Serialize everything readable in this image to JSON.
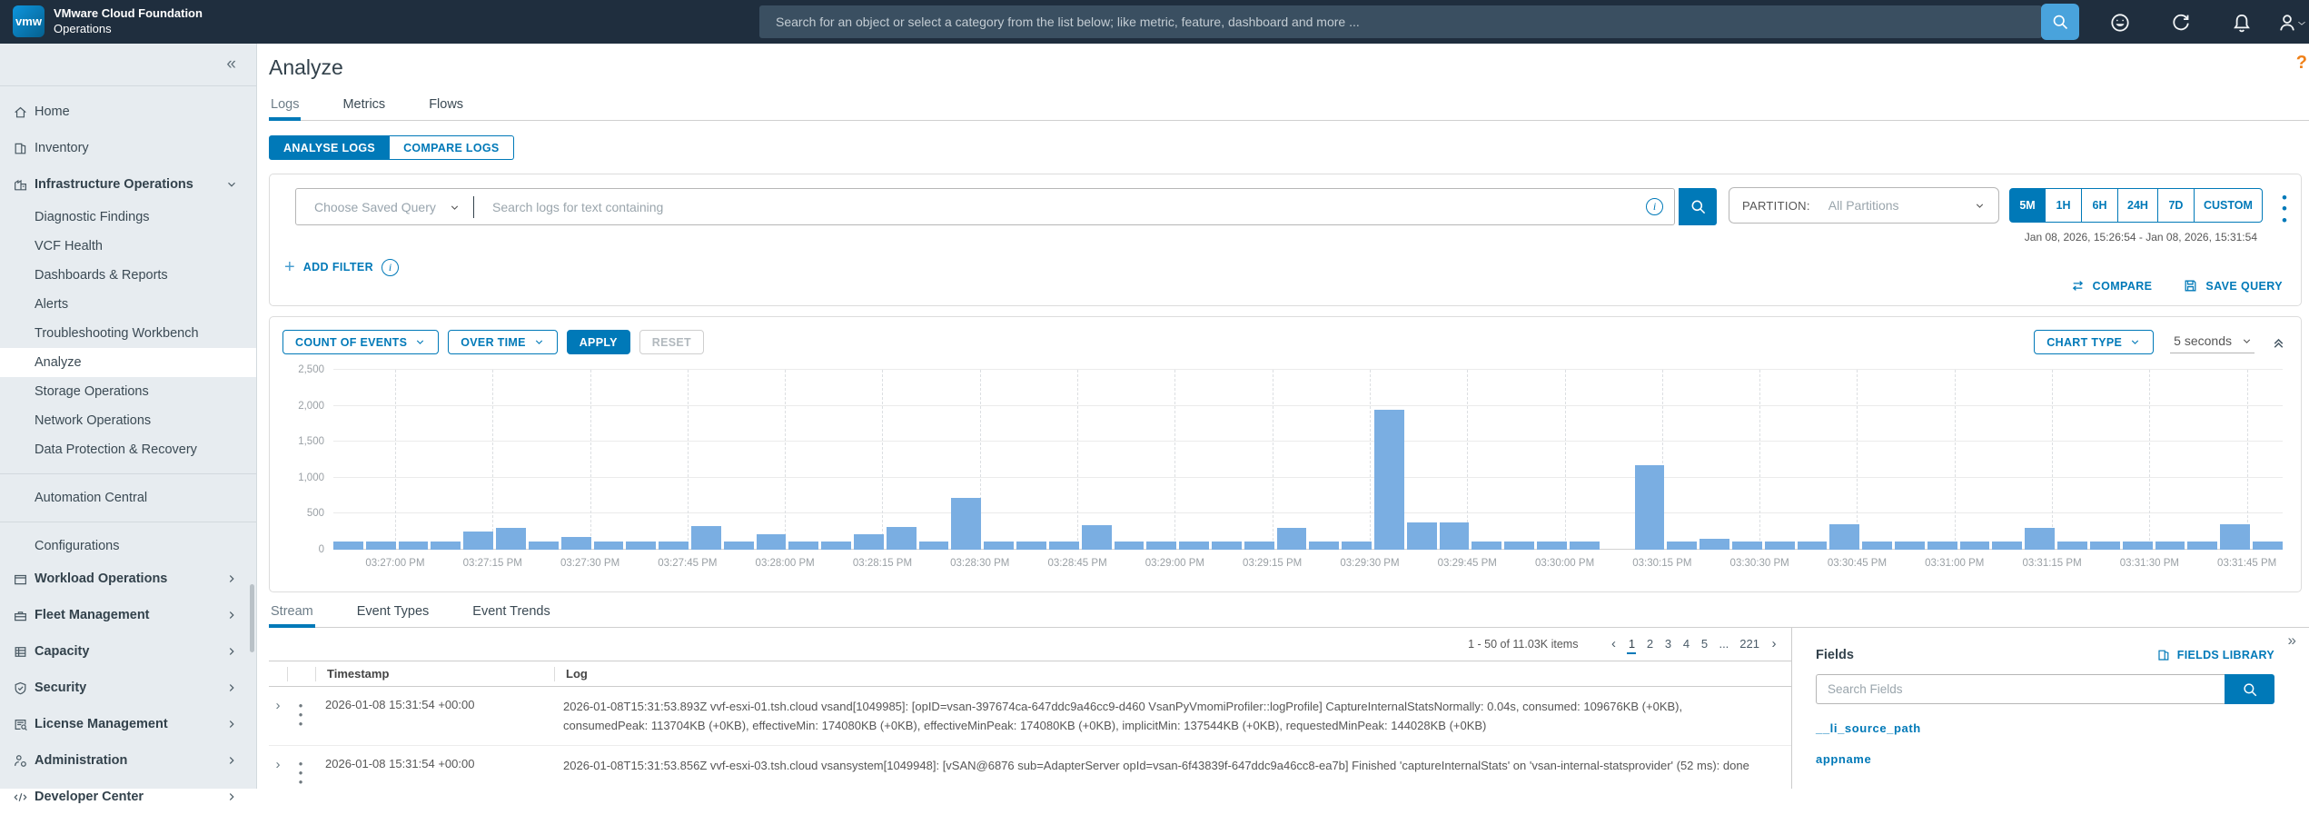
{
  "header": {
    "logo_text": "vmw",
    "brand_line1": "VMware Cloud Foundation",
    "brand_line2": "Operations",
    "search_placeholder": "Search for an object or select a category from the list below; like metric, feature, dashboard and more ..."
  },
  "page": {
    "title": "Analyze",
    "help_label": "?"
  },
  "sidebar": {
    "collapse_icon": "«",
    "items": [
      {
        "label": "Home",
        "icon": "home"
      },
      {
        "label": "Inventory",
        "icon": "inventory"
      },
      {
        "label": "Infrastructure Operations",
        "icon": "infrastructure",
        "bold": true,
        "expand": "down"
      },
      {
        "label": "Diagnostic Findings",
        "sub": true
      },
      {
        "label": "VCF Health",
        "sub": true
      },
      {
        "label": "Dashboards & Reports",
        "sub": true
      },
      {
        "label": "Alerts",
        "sub": true
      },
      {
        "label": "Troubleshooting Workbench",
        "sub": true
      },
      {
        "label": "Analyze",
        "sub": true,
        "selected": true
      },
      {
        "label": "Storage Operations",
        "sub": true
      },
      {
        "label": "Network Operations",
        "sub": true
      },
      {
        "label": "Data Protection & Recovery",
        "sub": true
      },
      {
        "divider": true
      },
      {
        "label": "Automation Central",
        "sub": true
      },
      {
        "divider": true
      },
      {
        "label": "Configurations",
        "sub": true
      },
      {
        "label": "Workload Operations",
        "icon": "workload",
        "bold": true,
        "expand": "right"
      },
      {
        "label": "Fleet Management",
        "icon": "fleet",
        "bold": true,
        "expand": "right"
      },
      {
        "label": "Capacity",
        "icon": "capacity",
        "bold": true,
        "expand": "right"
      },
      {
        "label": "Security",
        "icon": "security",
        "bold": true,
        "expand": "right"
      },
      {
        "label": "License Management",
        "icon": "license",
        "bold": true,
        "expand": "right"
      },
      {
        "label": "Administration",
        "icon": "administration",
        "bold": true,
        "expand": "right"
      },
      {
        "label": "Developer Center",
        "icon": "developer",
        "bold": true,
        "expand": "right"
      }
    ]
  },
  "tabs": {
    "items": [
      "Logs",
      "Metrics",
      "Flows"
    ],
    "active": "Logs"
  },
  "modes": {
    "analyse": "ANALYSE LOGS",
    "compare": "COMPARE LOGS",
    "active": "ANALYSE LOGS"
  },
  "query": {
    "saved_query_placeholder": "Choose Saved Query",
    "search_placeholder": "Search logs for text containing",
    "partition_label": "PARTITION:",
    "partition_value": "All Partitions",
    "time_ranges": [
      "5M",
      "1H",
      "6H",
      "24H",
      "7D",
      "CUSTOM"
    ],
    "time_range_active": "5M",
    "date_range": "Jan 08, 2026, 15:26:54 - Jan 08, 2026, 15:31:54",
    "add_filter_label": "ADD FILTER",
    "compare_label": "COMPARE",
    "save_query_label": "SAVE QUERY"
  },
  "chart_controls": {
    "metric": "COUNT OF EVENTS",
    "dimension": "OVER TIME",
    "apply": "APPLY",
    "reset": "RESET",
    "chart_type": "CHART TYPE",
    "interval": "5 seconds"
  },
  "chart_data": {
    "type": "bar",
    "title": "Count of events over time",
    "ylabel": "",
    "xlabel": "",
    "ylim": [
      0,
      2500
    ],
    "ytick_labels": [
      "0",
      "500",
      "1,000",
      "1,500",
      "2,000",
      "2,500"
    ],
    "interval_seconds": 5,
    "xticks": [
      "03:27:00 PM",
      "03:27:15 PM",
      "03:27:30 PM",
      "03:27:45 PM",
      "03:28:00 PM",
      "03:28:15 PM",
      "03:28:30 PM",
      "03:28:45 PM",
      "03:29:00 PM",
      "03:29:15 PM",
      "03:29:30 PM",
      "03:29:45 PM",
      "03:30:00 PM",
      "03:30:15 PM",
      "03:30:30 PM",
      "03:30:45 PM",
      "03:31:00 PM",
      "03:31:15 PM",
      "03:31:30 PM",
      "03:31:45 PM"
    ],
    "values": [
      110,
      110,
      110,
      110,
      250,
      300,
      115,
      180,
      115,
      115,
      115,
      330,
      115,
      210,
      115,
      115,
      210,
      310,
      115,
      720,
      115,
      115,
      115,
      340,
      115,
      115,
      115,
      115,
      115,
      300,
      115,
      115,
      1950,
      380,
      380,
      115,
      115,
      115,
      115,
      0,
      1180,
      115,
      150,
      115,
      115,
      115,
      350,
      115,
      115,
      115,
      115,
      115,
      300,
      115,
      115,
      115,
      115,
      115,
      360,
      110
    ],
    "bar_color": "#7aaee2",
    "grid": true,
    "legend": false
  },
  "results": {
    "tabs": {
      "items": [
        "Stream",
        "Event Types",
        "Event Trends"
      ],
      "active": "Stream"
    },
    "pagination": {
      "summary": "1 - 50 of 11.03K items",
      "prev": "‹",
      "next": "›",
      "pages": [
        "1",
        "2",
        "3",
        "4",
        "5",
        "...",
        "221"
      ],
      "active_page": "1"
    },
    "columns": [
      "Timestamp",
      "Log"
    ],
    "rows": [
      {
        "timestamp": "2026-01-08 15:31:54 +00:00",
        "log": "2026-01-08T15:31:53.893Z vvf-esxi-01.tsh.cloud vsand[1049985]: [opID=vsan-397674ca-647ddc9a46cc9-d460 VsanPyVmomiProfiler::logProfile] CaptureInternalStatsNormally: 0.04s, consumed: 109676KB (+0KB), consumedPeak: 113704KB (+0KB), effectiveMin: 174080KB (+0KB), effectiveMinPeak: 174080KB (+0KB), implicitMin: 137544KB (+0KB), requestedMinPeak: 144028KB (+0KB)"
      },
      {
        "timestamp": "2026-01-08 15:31:54 +00:00",
        "log": "2026-01-08T15:31:53.856Z vvf-esxi-03.tsh.cloud vsansystem[1049948]: [vSAN@6876 sub=AdapterServer opId=vsan-6f43839f-647ddc9a46cc8-ea7b] Finished 'captureInternalStats' on 'vsan-internal-statsprovider' (52 ms): done"
      }
    ]
  },
  "fields_panel": {
    "collapse_icon": "»",
    "title": "Fields",
    "library_label": "FIELDS LIBRARY",
    "search_placeholder": "Search Fields",
    "fields": [
      "__li_source_path",
      "appname"
    ]
  },
  "colors": {
    "accent_blue": "#0079b8",
    "bar_blue": "#7aaee2",
    "header_bg": "#1f2e3e",
    "sidebar_bg": "#e7ecf0"
  }
}
